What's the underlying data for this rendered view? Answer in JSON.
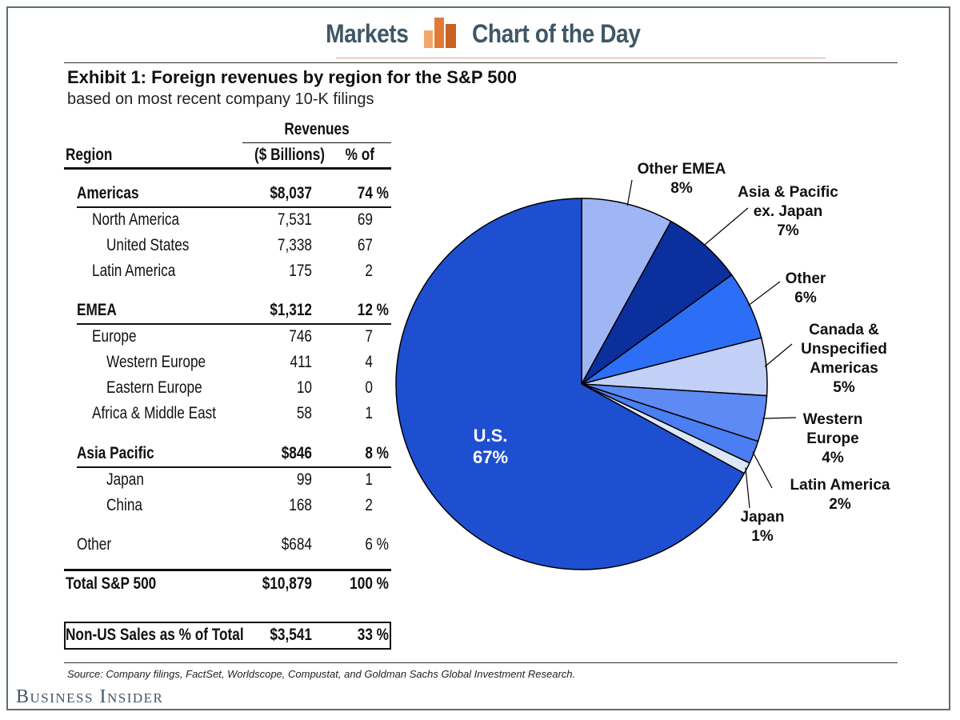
{
  "banner": {
    "left": "Markets",
    "right": "Chart of the Day"
  },
  "exhibit": {
    "title": "Exhibit 1: Foreign revenues by region for the S&P 500",
    "subtitle": "based on most recent company 10-K filings"
  },
  "table": {
    "header_group": "Revenues",
    "col_region": "Region",
    "col_billions": "($ Billions)",
    "col_pct": "% of",
    "rows": [
      {
        "region": "Americas",
        "value": "$8,037",
        "pct": "74 %",
        "bold": true,
        "indent": 0
      },
      {
        "region": "North America",
        "value": "7,531",
        "pct": "69",
        "bold": false,
        "indent": 1
      },
      {
        "region": "United States",
        "value": "7,338",
        "pct": "67",
        "bold": false,
        "indent": 2
      },
      {
        "region": "Latin America",
        "value": "175",
        "pct": "2",
        "bold": false,
        "indent": 1
      },
      {
        "region": "EMEA",
        "value": "$1,312",
        "pct": "12 %",
        "bold": true,
        "indent": 0
      },
      {
        "region": "Europe",
        "value": "746",
        "pct": "7",
        "bold": false,
        "indent": 1
      },
      {
        "region": "Western Europe",
        "value": "411",
        "pct": "4",
        "bold": false,
        "indent": 2
      },
      {
        "region": "Eastern Europe",
        "value": "10",
        "pct": "0",
        "bold": false,
        "indent": 2
      },
      {
        "region": "Africa & Middle East",
        "value": "58",
        "pct": "1",
        "bold": false,
        "indent": 1
      },
      {
        "region": "Asia Pacific",
        "value": "$846",
        "pct": "8 %",
        "bold": true,
        "indent": 0
      },
      {
        "region": "Japan",
        "value": "99",
        "pct": "1",
        "bold": false,
        "indent": 2
      },
      {
        "region": "China",
        "value": "168",
        "pct": "2",
        "bold": false,
        "indent": 2
      },
      {
        "region": "Other",
        "value": "$684",
        "pct": "6 %",
        "bold": false,
        "indent": 0
      },
      {
        "region": "Total S&P 500",
        "value": "$10,879",
        "pct": "100 %",
        "bold": true,
        "indent": 0
      },
      {
        "region": "Non-US Sales as % of Total",
        "value": "$3,541",
        "pct": "33 %",
        "bold": true,
        "indent": 0
      }
    ]
  },
  "chart_data": {
    "type": "pie",
    "title": "Foreign revenues by region for the S&P 500",
    "slices": [
      {
        "name": "U.S.",
        "label_lines": [
          "U.S."
        ],
        "value": 67,
        "value_label": "67%",
        "color": "#1f4fd1"
      },
      {
        "name": "Other EMEA",
        "label_lines": [
          "Other EMEA"
        ],
        "value": 8,
        "value_label": "8%",
        "color": "#9fb6f5"
      },
      {
        "name": "Asia & Pacific ex. Japan",
        "label_lines": [
          "Asia & Pacific",
          "ex. Japan"
        ],
        "value": 7,
        "value_label": "7%",
        "color": "#0c2f9e"
      },
      {
        "name": "Other",
        "label_lines": [
          "Other"
        ],
        "value": 6,
        "value_label": "6%",
        "color": "#2c6ef5"
      },
      {
        "name": "Canada & Unspecified Americas",
        "label_lines": [
          "Canada &",
          "Unspecified",
          "Americas"
        ],
        "value": 5,
        "value_label": "5%",
        "color": "#c2cff7"
      },
      {
        "name": "Western Europe",
        "label_lines": [
          "Western",
          "Europe"
        ],
        "value": 4,
        "value_label": "4%",
        "color": "#5d8bf3"
      },
      {
        "name": "Latin America",
        "label_lines": [
          "Latin America"
        ],
        "value": 2,
        "value_label": "2%",
        "color": "#4a7ef2"
      },
      {
        "name": "Japan",
        "label_lines": [
          "Japan"
        ],
        "value": 1,
        "value_label": "1%",
        "color": "#dbe7f7"
      }
    ]
  },
  "footer": {
    "source": "Source: Company filings, FactSet, Worldscope, Compustat, and Goldman Sachs Global Investment Research.",
    "brand": "Business Insider"
  }
}
